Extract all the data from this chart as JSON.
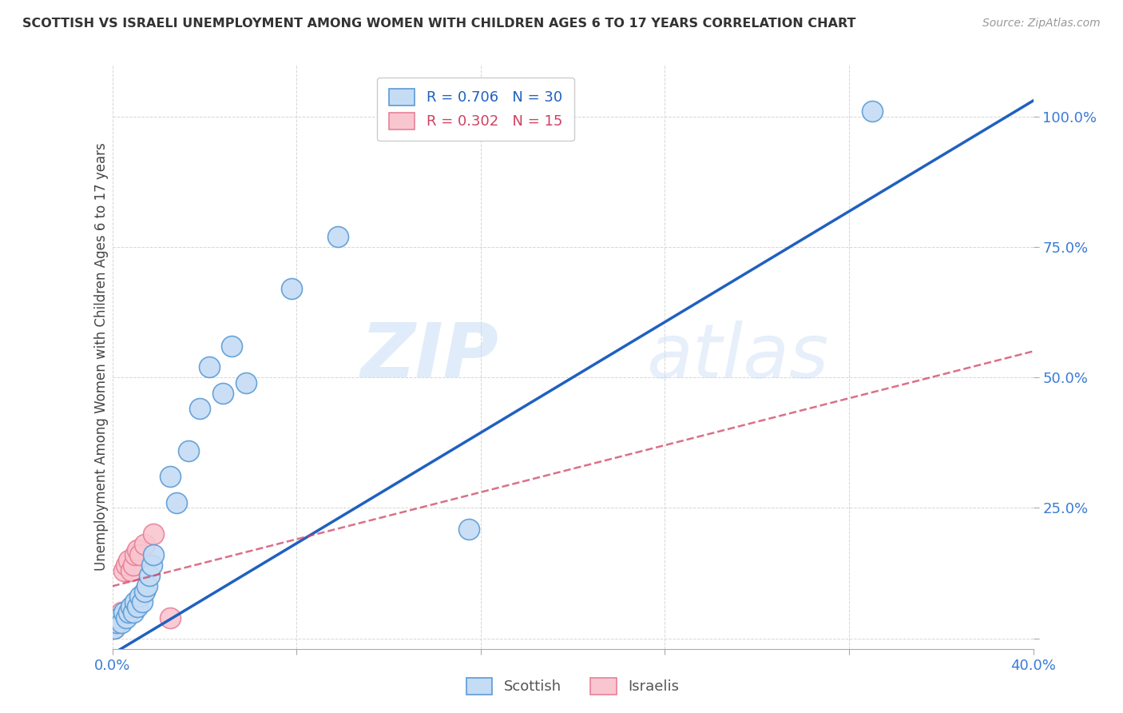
{
  "title": "SCOTTISH VS ISRAELI UNEMPLOYMENT AMONG WOMEN WITH CHILDREN AGES 6 TO 17 YEARS CORRELATION CHART",
  "source": "Source: ZipAtlas.com",
  "ylabel": "Unemployment Among Women with Children Ages 6 to 17 years",
  "xlim": [
    0.0,
    0.4
  ],
  "ylim": [
    -0.02,
    1.1
  ],
  "x_ticks": [
    0.0,
    0.08,
    0.16,
    0.24,
    0.32,
    0.4
  ],
  "x_tick_labels": [
    "0.0%",
    "",
    "",
    "",
    "",
    "40.0%"
  ],
  "y_ticks": [
    0.0,
    0.25,
    0.5,
    0.75,
    1.0
  ],
  "y_tick_labels": [
    "",
    "25.0%",
    "50.0%",
    "75.0%",
    "100.0%"
  ],
  "scottish_R": 0.706,
  "scottish_N": 30,
  "israeli_R": 0.302,
  "israeli_N": 15,
  "scottish_color": "#c5dcf5",
  "scottish_edge_color": "#5b9bd5",
  "scottish_line_color": "#2060c0",
  "israeli_color": "#f9c6d0",
  "israeli_edge_color": "#e88098",
  "israeli_line_color": "#d04060",
  "watermark_zip": "ZIP",
  "watermark_atlas": "atlas",
  "scottish_x": [
    0.001,
    0.002,
    0.003,
    0.004,
    0.005,
    0.006,
    0.007,
    0.008,
    0.009,
    0.01,
    0.011,
    0.012,
    0.013,
    0.014,
    0.015,
    0.016,
    0.017,
    0.018,
    0.025,
    0.028,
    0.033,
    0.038,
    0.042,
    0.048,
    0.052,
    0.058,
    0.078,
    0.098,
    0.155,
    0.33
  ],
  "scottish_y": [
    0.02,
    0.03,
    0.04,
    0.03,
    0.05,
    0.04,
    0.05,
    0.06,
    0.05,
    0.07,
    0.06,
    0.08,
    0.07,
    0.09,
    0.1,
    0.12,
    0.14,
    0.16,
    0.31,
    0.26,
    0.36,
    0.44,
    0.52,
    0.47,
    0.56,
    0.49,
    0.67,
    0.77,
    0.21,
    1.01
  ],
  "israeli_x": [
    0.001,
    0.002,
    0.003,
    0.004,
    0.005,
    0.006,
    0.007,
    0.008,
    0.009,
    0.01,
    0.011,
    0.012,
    0.014,
    0.018,
    0.025
  ],
  "israeli_y": [
    0.02,
    0.03,
    0.04,
    0.05,
    0.13,
    0.14,
    0.15,
    0.13,
    0.14,
    0.16,
    0.17,
    0.16,
    0.18,
    0.2,
    0.04
  ],
  "scottish_line_x": [
    0.0,
    0.4
  ],
  "scottish_line_y": [
    -0.03,
    1.03
  ],
  "israeli_line_x": [
    0.0,
    0.4
  ],
  "israeli_line_y": [
    0.1,
    0.55
  ]
}
